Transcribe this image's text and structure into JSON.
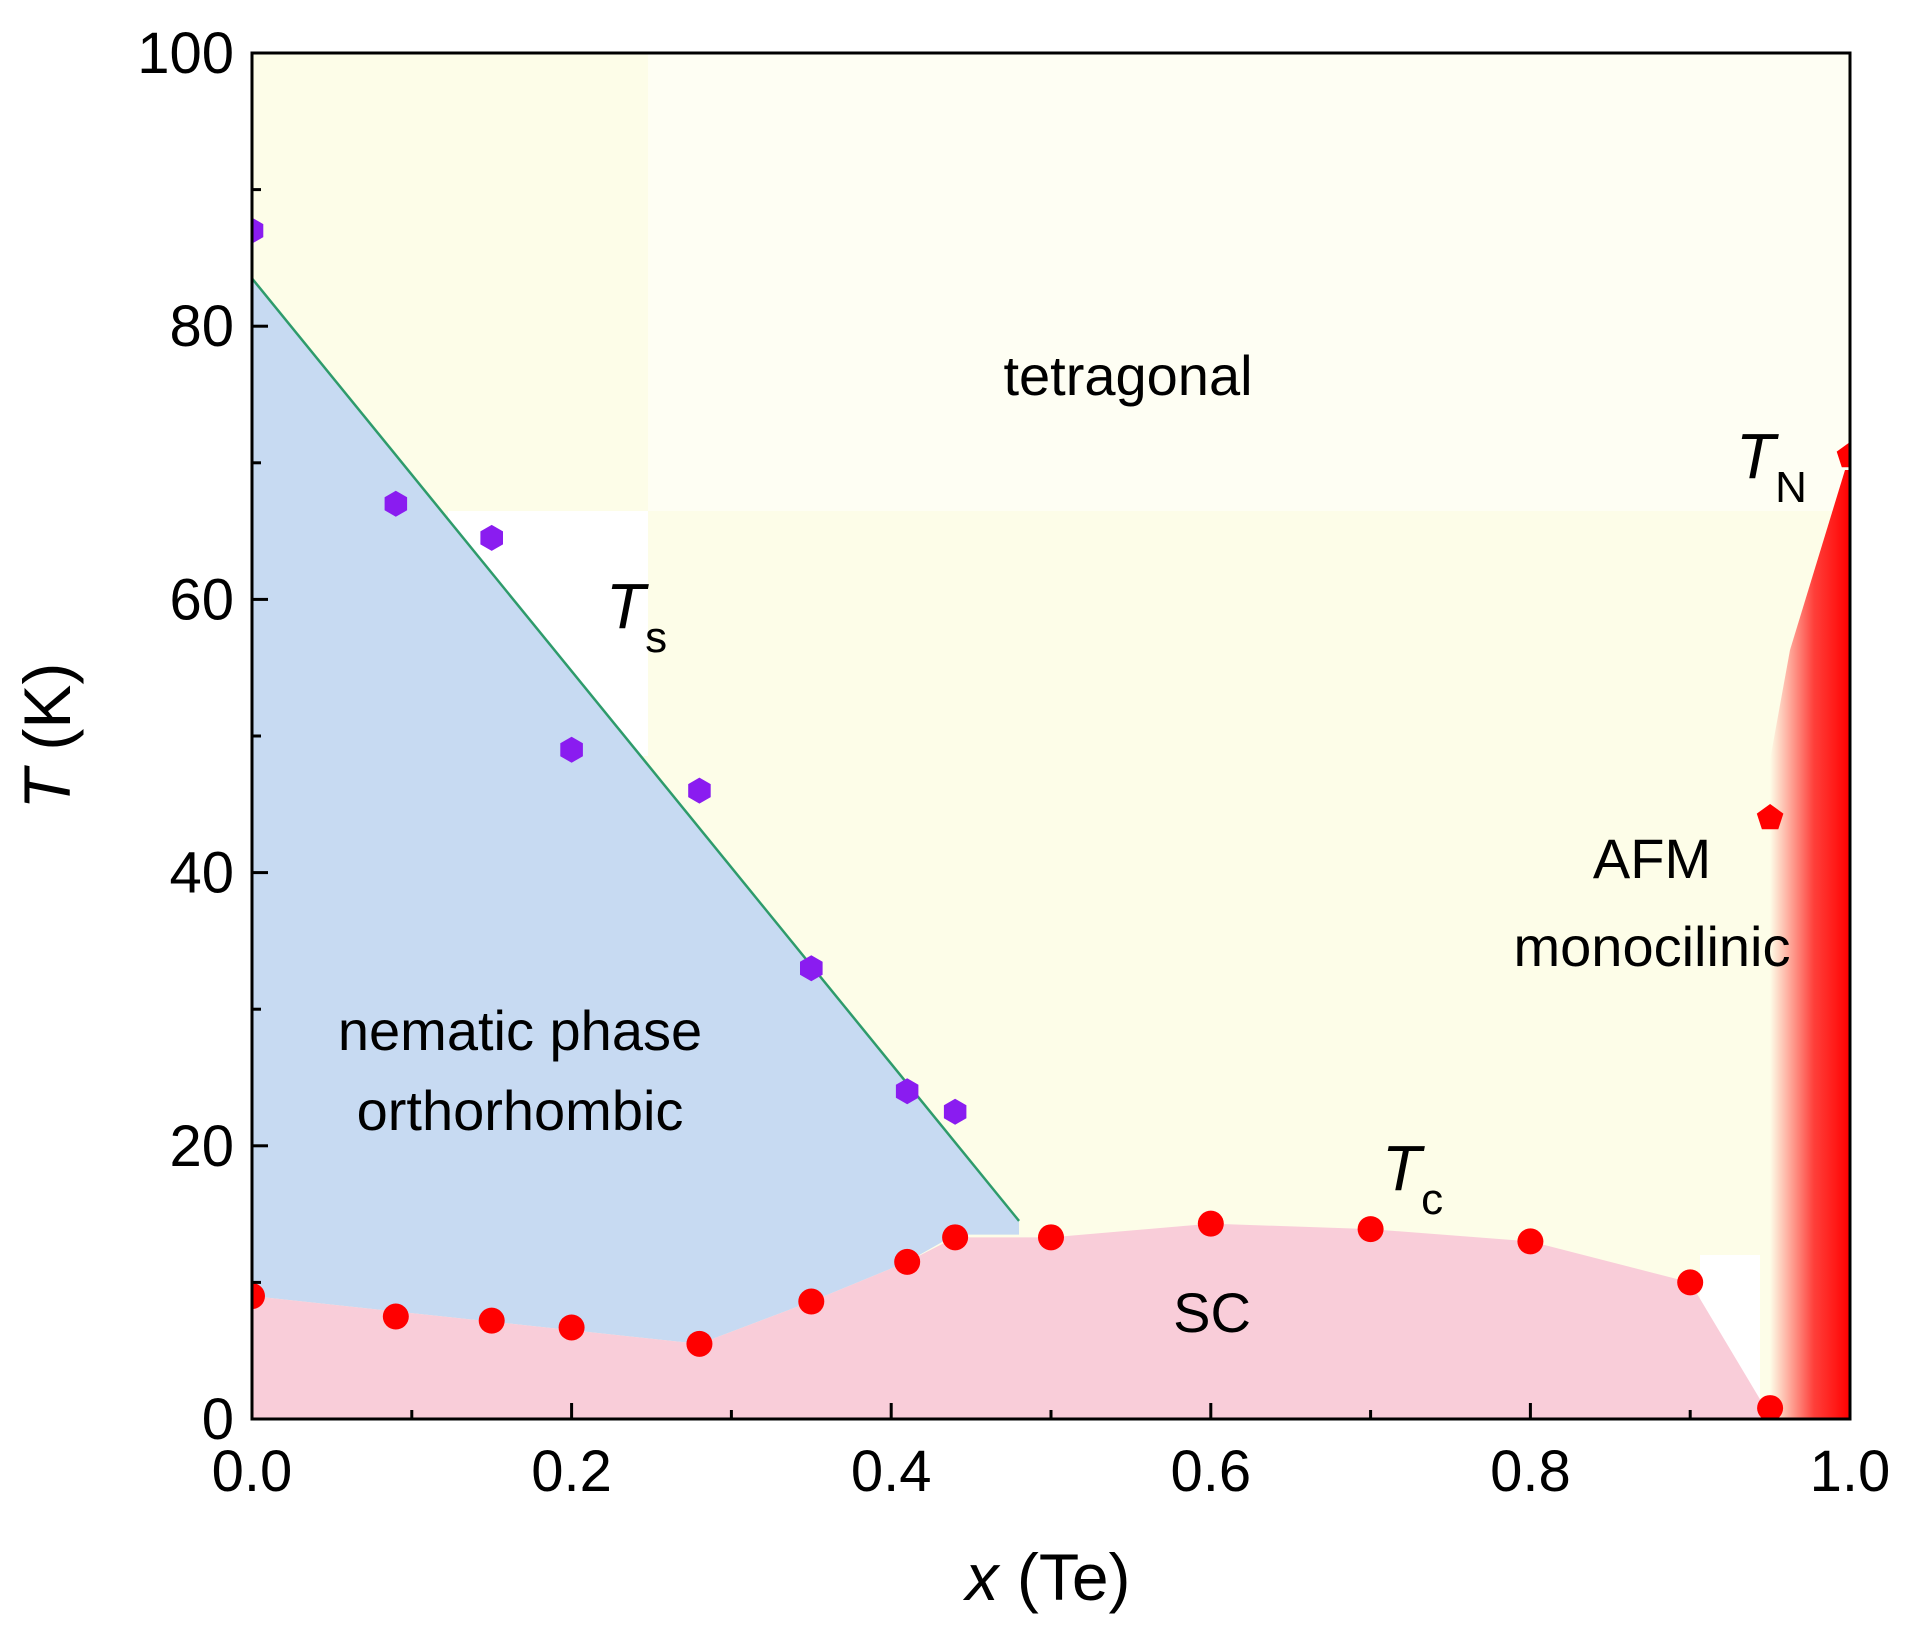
{
  "chart_data": {
    "type": "scatter",
    "title": "",
    "xlabel": {
      "var": "x",
      "rest": " (Te)"
    },
    "ylabel": {
      "var": "T",
      "rest": " (K)"
    },
    "xlim": [
      0,
      1.0
    ],
    "ylim": [
      0,
      100
    ],
    "xticks": [
      "0.0",
      "0.2",
      "0.4",
      "0.6",
      "0.8",
      "1.0"
    ],
    "xtick_values": [
      0,
      0.2,
      0.4,
      0.6,
      0.8,
      1.0
    ],
    "yticks": [
      "0",
      "20",
      "40",
      "60",
      "80",
      "100"
    ],
    "ytick_values": [
      0,
      20,
      40,
      60,
      80,
      100
    ],
    "series": [
      {
        "name": "Ts",
        "label_main": "T",
        "label_sub": "s",
        "marker": "hexagon",
        "color": "#8a1cf0",
        "x": [
          0.0,
          0.09,
          0.15,
          0.2,
          0.28,
          0.35,
          0.41,
          0.44
        ],
        "y": [
          87,
          67,
          64.5,
          49,
          46,
          33,
          24,
          22.5
        ]
      },
      {
        "name": "Tc",
        "label_main": "T",
        "label_sub": "c",
        "marker": "circle",
        "color": "#ff0000",
        "x": [
          0.0,
          0.09,
          0.15,
          0.2,
          0.28,
          0.35,
          0.41,
          0.44,
          0.5,
          0.6,
          0.7,
          0.8,
          0.9,
          0.95
        ],
        "y": [
          9,
          7.5,
          7.2,
          6.7,
          5.5,
          8.6,
          11.5,
          13.3,
          13.3,
          14.3,
          13.9,
          13.0,
          10.0,
          0.8
        ]
      },
      {
        "name": "TN",
        "label_main": "T",
        "label_sub": "N",
        "marker": "pentagon",
        "color": "#ff0000",
        "x": [
          0.95,
          1.0
        ],
        "y": [
          44,
          70.5
        ]
      }
    ],
    "ts_line": {
      "x": [
        0.0,
        0.48
      ],
      "y": [
        83.5,
        14.5
      ],
      "color": "#2e9b6b"
    },
    "regions": [
      {
        "name": "tetragonal",
        "color": "#fdfde8"
      },
      {
        "name": "nematic",
        "color": "#c7daf2",
        "boundary_x": [
          0.0,
          0.48,
          0.48,
          0.44,
          0.41,
          0.35,
          0.28,
          0.0
        ],
        "boundary_y": [
          83.5,
          14.5,
          13.5,
          13.5,
          11.5,
          8.6,
          5.5,
          9
        ]
      },
      {
        "name": "sc",
        "color": "#f9cdd9",
        "boundary_x": [
          0.0,
          0.28,
          0.35,
          0.41,
          0.44,
          0.5,
          0.6,
          0.7,
          0.8,
          0.9,
          0.948,
          0.948,
          0.0
        ],
        "boundary_y": [
          9,
          5.5,
          8.6,
          11.5,
          13.3,
          13.3,
          14.3,
          13.9,
          13.0,
          10.0,
          0.6,
          0,
          0
        ]
      },
      {
        "name": "afm",
        "color": "#ff0000"
      }
    ],
    "labels": {
      "tetragonal": "tetragonal",
      "nematic_line1": "nematic phase",
      "nematic_line2": "orthorhombic",
      "sc": "SC",
      "afm_line1": "AFM",
      "afm_line2": "monocilinic"
    }
  }
}
